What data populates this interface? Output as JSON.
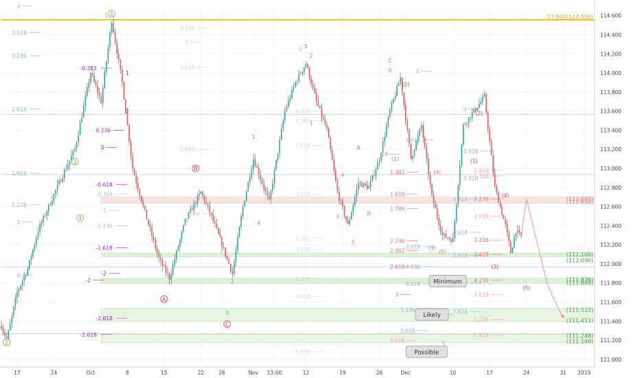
{
  "chart_data": {
    "type": "candlestick",
    "series_colors": {
      "up": "#26a69a",
      "down": "#ef5350",
      "wick": "#555555"
    },
    "ylim": [
      110.92,
      114.72
    ],
    "xlim": [
      0,
      113
    ],
    "y_ticks": [
      "114.600",
      "114.400",
      "114.200",
      "114.000",
      "113.800",
      "113.600",
      "113.400",
      "113.200",
      "113.000",
      "112.800",
      "112.600",
      "112.400",
      "112.200",
      "112.000",
      "111.800",
      "111.600",
      "111.400",
      "111.200",
      "111.000"
    ],
    "x_ticks": [
      {
        "label": "17",
        "x": 3
      },
      {
        "label": "24",
        "x": 10
      },
      {
        "label": "Oct",
        "x": 17
      },
      {
        "label": "8",
        "x": 24
      },
      {
        "label": "15",
        "x": 31
      },
      {
        "label": "22",
        "x": 38
      },
      {
        "label": "26",
        "x": 42
      },
      {
        "label": "Nov",
        "x": 48
      },
      {
        "label": "13:00",
        "x": 52
      },
      {
        "label": "12",
        "x": 58
      },
      {
        "label": "19",
        "x": 65
      },
      {
        "label": "26",
        "x": 72
      },
      {
        "label": "Dec",
        "x": 77
      },
      {
        "label": "10",
        "x": 86
      },
      {
        "label": "17",
        "x": 93
      },
      {
        "label": "24",
        "x": 100
      },
      {
        "label": "31",
        "x": 107
      },
      {
        "label": "2019",
        "x": 111
      }
    ],
    "anchors": [
      {
        "x": 0,
        "y": 111.35
      },
      {
        "x": 1,
        "y": 111.2
      },
      {
        "x": 3,
        "y": 111.7
      },
      {
        "x": 5,
        "y": 111.95
      },
      {
        "x": 7,
        "y": 112.35
      },
      {
        "x": 9,
        "y": 112.6
      },
      {
        "x": 11,
        "y": 112.85
      },
      {
        "x": 14,
        "y": 113.2
      },
      {
        "x": 17,
        "y": 114.0
      },
      {
        "x": 19,
        "y": 113.7
      },
      {
        "x": 21,
        "y": 114.55
      },
      {
        "x": 23,
        "y": 113.9
      },
      {
        "x": 25,
        "y": 113.0
      },
      {
        "x": 27,
        "y": 112.6
      },
      {
        "x": 30,
        "y": 112.05
      },
      {
        "x": 32,
        "y": 111.85
      },
      {
        "x": 35,
        "y": 112.45
      },
      {
        "x": 38,
        "y": 112.75
      },
      {
        "x": 40,
        "y": 112.5
      },
      {
        "x": 42,
        "y": 112.2
      },
      {
        "x": 44,
        "y": 111.9
      },
      {
        "x": 46,
        "y": 112.6
      },
      {
        "x": 48,
        "y": 113.1
      },
      {
        "x": 51,
        "y": 112.65
      },
      {
        "x": 54,
        "y": 113.6
      },
      {
        "x": 56,
        "y": 113.9
      },
      {
        "x": 58,
        "y": 114.1
      },
      {
        "x": 60,
        "y": 113.7
      },
      {
        "x": 62,
        "y": 113.4
      },
      {
        "x": 64,
        "y": 112.75
      },
      {
        "x": 66,
        "y": 112.4
      },
      {
        "x": 68,
        "y": 112.85
      },
      {
        "x": 70,
        "y": 112.8
      },
      {
        "x": 72,
        "y": 113.1
      },
      {
        "x": 74,
        "y": 113.6
      },
      {
        "x": 76,
        "y": 113.95
      },
      {
        "x": 78,
        "y": 113.1
      },
      {
        "x": 80,
        "y": 113.45
      },
      {
        "x": 82,
        "y": 112.7
      },
      {
        "x": 84,
        "y": 112.3
      },
      {
        "x": 86,
        "y": 112.25
      },
      {
        "x": 88,
        "y": 113.45
      },
      {
        "x": 90,
        "y": 113.6
      },
      {
        "x": 92,
        "y": 113.75
      },
      {
        "x": 94,
        "y": 112.8
      },
      {
        "x": 96,
        "y": 112.4
      },
      {
        "x": 97,
        "y": 112.12
      },
      {
        "x": 98,
        "y": 112.35
      },
      {
        "x": 99,
        "y": 112.28
      }
    ],
    "last_bar": 99,
    "forecast": [
      {
        "x": 99,
        "y": 112.28
      },
      {
        "x": 100,
        "y": 112.68
      },
      {
        "x": 104,
        "y": 111.78
      },
      {
        "x": 107,
        "y": 111.43
      }
    ],
    "horizontal_lines": [
      {
        "y": 114.556,
        "color": "#f5a623",
        "label": "17.942(114.556)"
      },
      {
        "y": 113.565,
        "color": "#b9c4cf"
      },
      {
        "y": 112.935,
        "color": "#b9c4cf"
      },
      {
        "y": 111.97,
        "color": "#b9c4cf"
      },
      {
        "y": 111.27,
        "color": "#b9c4cf"
      }
    ],
    "zones": [
      {
        "y1": 112.685,
        "y2": 112.65,
        "fill": "#fde2e2",
        "labels": [
          {
            "text": "(112.685)",
            "y": 112.685,
            "color": "#f08080"
          },
          {
            "text": "(112.650)",
            "y": 112.65,
            "color": "#f08080"
          }
        ]
      },
      {
        "y1": 112.1,
        "y2": 112.09,
        "fill": "#dff0d8",
        "labels": [
          {
            "text": "(112.100)",
            "y": 112.1,
            "color": "#43a047"
          },
          {
            "text": "(112.090)",
            "y": 112.04,
            "color": "#43a047"
          }
        ]
      },
      {
        "y1": 111.836,
        "y2": 111.809,
        "fill": "#dff0d8",
        "labels": [
          {
            "text": "(111.836)",
            "y": 111.836,
            "color": "#43a047"
          },
          {
            "text": "(111.809)",
            "y": 111.8,
            "color": "#43a047"
          }
        ]
      },
      {
        "y1": 111.522,
        "y2": 111.411,
        "fill": "#e8f5e3",
        "labels": [
          {
            "text": "(111.522)",
            "y": 111.522,
            "color": "#43a047"
          },
          {
            "text": "(111.411)",
            "y": 111.411,
            "color": "#43a047"
          }
        ]
      },
      {
        "y1": 111.248,
        "y2": 111.19,
        "fill": "#e8f5e3",
        "labels": [
          {
            "text": "(111.248)",
            "y": 111.248,
            "color": "#43a047"
          },
          {
            "text": "(111.190)",
            "y": 111.19,
            "color": "#43a047"
          }
        ]
      }
    ],
    "fib_labels": [
      {
        "text": "4",
        "x": 3,
        "y": 114.7,
        "color": "#9fbfd6"
      },
      {
        "text": "3.618",
        "x": 2,
        "y": 114.42,
        "color": "#8bb7d6"
      },
      {
        "text": "3.236",
        "x": 2,
        "y": 114.18,
        "color": "#8bb7d6"
      },
      {
        "text": "2.618",
        "x": 2,
        "y": 113.62,
        "color": "#8bb7d6"
      },
      {
        "text": "1.618",
        "x": 2,
        "y": 112.95,
        "color": "#8bb7d6"
      },
      {
        "text": "1.236",
        "x": 2,
        "y": 112.62,
        "color": "#8bb7d6"
      },
      {
        "text": "1",
        "x": 3,
        "y": 112.44,
        "color": "#8bb7d6"
      },
      {
        "text": "0",
        "x": 3,
        "y": 111.88,
        "color": "#8bb7d6"
      },
      {
        "text": "-0.382",
        "x": 15,
        "y": 114.05,
        "color": "#9c27b0"
      },
      {
        "text": "0.236",
        "x": 18,
        "y": 113.4,
        "color": "#9c27b0"
      },
      {
        "text": "0",
        "x": 19,
        "y": 113.22,
        "color": "#9c27b0"
      },
      {
        "text": "-0.618",
        "x": 18,
        "y": 112.83,
        "color": "#9c27b0"
      },
      {
        "text": "-0.764",
        "x": 18,
        "y": 112.73,
        "color": "#b7b7b7"
      },
      {
        "text": "-1",
        "x": 19,
        "y": 112.56,
        "color": "#b7b7b7"
      },
      {
        "text": "-1.236",
        "x": 18,
        "y": 112.4,
        "color": "#b7b7b7"
      },
      {
        "text": "-1.618",
        "x": 18,
        "y": 112.17,
        "color": "#9c27b0"
      },
      {
        "text": "-2",
        "x": 19,
        "y": 111.9,
        "color": "#9c27b0"
      },
      {
        "text": "-2",
        "x": 16,
        "y": 111.83,
        "color": "#9c27b0"
      },
      {
        "text": "-2.618",
        "x": 18,
        "y": 111.43,
        "color": "#9c27b0"
      },
      {
        "text": "-2.618",
        "x": 15,
        "y": 111.26,
        "color": "#9c27b0"
      },
      {
        "text": "6.236",
        "x": 34,
        "y": 114.47,
        "color": "#d8d3b8"
      },
      {
        "text": "5",
        "x": 35,
        "y": 114.32,
        "color": "#d8d3b8"
      },
      {
        "text": "3.618",
        "x": 34,
        "y": 114.06,
        "color": "#d8d3b8"
      },
      {
        "text": "2.618",
        "x": 34,
        "y": 113.2,
        "color": "#d8d3b8"
      },
      {
        "text": "1.618",
        "x": 35,
        "y": 112.52,
        "color": "#d8d3b8"
      },
      {
        "text": "4.236",
        "x": 56,
        "y": 113.6,
        "color": "#c7dbe9"
      },
      {
        "text": "1.382",
        "x": 56,
        "y": 113.5,
        "color": "#c7dbe9"
      },
      {
        "text": "1.618",
        "x": 56,
        "y": 113.24,
        "color": "#c7dbe9"
      },
      {
        "text": "2.618",
        "x": 56,
        "y": 112.73,
        "color": "#c7dbe9"
      },
      {
        "text": "3.382",
        "x": 56,
        "y": 112.27,
        "color": "#c7dbe9"
      },
      {
        "text": "3.618",
        "x": 56,
        "y": 112.15,
        "color": "#c7dbe9"
      },
      {
        "text": "4.236",
        "x": 56,
        "y": 111.84,
        "color": "#c7dbe9"
      },
      {
        "text": "4.618",
        "x": 56,
        "y": 111.66,
        "color": "#c7dbe9"
      },
      {
        "text": "5.618",
        "x": 56,
        "y": 111.08,
        "color": "#c7dbe9"
      },
      {
        "text": "0",
        "x": 73,
        "y": 113.15,
        "color": "#e57373"
      },
      {
        "text": "1.382",
        "x": 74,
        "y": 112.96,
        "color": "#e57373"
      },
      {
        "text": "1.618",
        "x": 74,
        "y": 112.73,
        "color": "#e57373"
      },
      {
        "text": "1.786",
        "x": 74,
        "y": 112.58,
        "color": "#e57373"
      },
      {
        "text": "2.236",
        "x": 74,
        "y": 112.24,
        "color": "#e57373"
      },
      {
        "text": "2.382",
        "x": 74,
        "y": 112.14,
        "color": "#e57373"
      },
      {
        "text": "2.618",
        "x": 74,
        "y": 111.97,
        "color": "#e57373"
      },
      {
        "text": "3",
        "x": 75,
        "y": 111.68,
        "color": "#e57373"
      },
      {
        "text": "3.618",
        "x": 74,
        "y": 111.2,
        "color": "#f4a9a8"
      },
      {
        "text": "3.618",
        "x": 77,
        "y": 112.18,
        "color": "#8bb7d6"
      },
      {
        "text": "4.236",
        "x": 77,
        "y": 111.97,
        "color": "#8bb7d6"
      },
      {
        "text": "4.618",
        "x": 77,
        "y": 111.79,
        "color": "#8bb7d6"
      },
      {
        "text": "5.236",
        "x": 76,
        "y": 111.52,
        "color": "#8bb7d6"
      },
      {
        "text": "5.618",
        "x": 76,
        "y": 111.3,
        "color": "#8bb7d6"
      },
      {
        "text": "0",
        "x": 79,
        "y": 114.02,
        "color": "#8bb7d6"
      },
      {
        "text": "1.618",
        "x": 77,
        "y": 113.3,
        "color": "#8bb7d6"
      },
      {
        "text": "0",
        "x": 88,
        "y": 113.62,
        "color": "#8bb7d6"
      },
      {
        "text": "1.618",
        "x": 88,
        "y": 113.18,
        "color": "#8bb7d6"
      },
      {
        "text": "2.618",
        "x": 88,
        "y": 112.9,
        "color": "#8bb7d6"
      },
      {
        "text": "3.618",
        "x": 86,
        "y": 112.68,
        "color": "#8bb7d6"
      },
      {
        "text": "4.618",
        "x": 86,
        "y": 112.33,
        "color": "#8bb7d6"
      },
      {
        "text": "5.618",
        "x": 86,
        "y": 112.09,
        "color": "#8bb7d6"
      },
      {
        "text": "6.618",
        "x": 86,
        "y": 111.8,
        "color": "#8bb7d6"
      },
      {
        "text": "7.618",
        "x": 86,
        "y": 111.5,
        "color": "#8bb7d6"
      },
      {
        "text": "1.618",
        "x": 90,
        "y": 112.98,
        "color": "#f4a9a8"
      },
      {
        "text": "1.764",
        "x": 90,
        "y": 112.92,
        "color": "#f4a9a8"
      },
      {
        "text": "2.236",
        "x": 90,
        "y": 112.68,
        "color": "#e57373"
      },
      {
        "text": "2.618",
        "x": 90,
        "y": 112.5,
        "color": "#f4a9a8"
      },
      {
        "text": "3.236",
        "x": 90,
        "y": 112.25,
        "color": "#e57373"
      },
      {
        "text": "3.618",
        "x": 90,
        "y": 112.1,
        "color": "#e57373"
      },
      {
        "text": "4.236",
        "x": 90,
        "y": 111.83,
        "color": "#e57373"
      },
      {
        "text": "4.618",
        "x": 90,
        "y": 111.68,
        "color": "#f4a9a8"
      },
      {
        "text": "5.236",
        "x": 90,
        "y": 111.42,
        "color": "#f4a9a8"
      },
      {
        "text": "5.618",
        "x": 90,
        "y": 111.25,
        "color": "#f4a9a8"
      }
    ],
    "wave_labels": [
      {
        "text": "5",
        "x": 21,
        "y": 114.62,
        "circle": true,
        "color": "#7cb342"
      },
      {
        "text": "3",
        "x": 14,
        "y": 113.07,
        "circle": true,
        "color": "#7cb342"
      },
      {
        "text": "4",
        "x": 15,
        "y": 112.48,
        "circle": true,
        "color": "#7cb342"
      },
      {
        "text": "2",
        "x": 1,
        "y": 111.18,
        "circle": true,
        "color": "#7cb342"
      },
      {
        "text": "1",
        "x": 20,
        "y": 114.6,
        "circle": false,
        "color": "#e57373"
      },
      {
        "text": "1",
        "x": 24,
        "y": 114.0,
        "circle": false,
        "color": "#9c27b0"
      },
      {
        "text": "2",
        "x": 24,
        "y": 113.6,
        "circle": false,
        "color": "#9c27b0"
      },
      {
        "text": "B",
        "x": 37,
        "y": 113.0,
        "circle": true,
        "color": "#e53935"
      },
      {
        "text": "A",
        "x": 31,
        "y": 111.63,
        "circle": true,
        "color": "#e53935"
      },
      {
        "text": "C",
        "x": 43,
        "y": 111.37,
        "circle": true,
        "color": "#e53935"
      },
      {
        "text": "3",
        "x": 48,
        "y": 113.33,
        "circle": false,
        "color": "#888888"
      },
      {
        "text": "4",
        "x": 49,
        "y": 112.43,
        "circle": false,
        "color": "#888888"
      },
      {
        "text": "5",
        "x": 58,
        "y": 114.28,
        "circle": false,
        "color": "#888888"
      },
      {
        "text": "0",
        "x": 57,
        "y": 114.25,
        "circle": false,
        "color": "#9fbfd6"
      },
      {
        "text": "2",
        "x": 44,
        "y": 111.82,
        "circle": false,
        "color": "#888888"
      },
      {
        "text": "0",
        "x": 43,
        "y": 111.49,
        "circle": false,
        "color": "#7cb342"
      },
      {
        "text": "2",
        "x": 59,
        "y": 114.18,
        "circle": false,
        "color": "#e57373"
      },
      {
        "text": "1",
        "x": 59,
        "y": 113.48,
        "circle": false,
        "color": "#888888"
      },
      {
        "text": "4",
        "x": 65,
        "y": 112.93,
        "circle": false,
        "color": "#e57373"
      },
      {
        "text": "3",
        "x": 64,
        "y": 112.5,
        "circle": false,
        "color": "#e57373"
      },
      {
        "text": "5",
        "x": 67,
        "y": 112.23,
        "circle": false,
        "color": "#e57373"
      },
      {
        "text": "A",
        "x": 68,
        "y": 113.22,
        "circle": false,
        "color": "#888888"
      },
      {
        "text": "B",
        "x": 70,
        "y": 112.53,
        "circle": false,
        "color": "#7cb342"
      },
      {
        "text": "C",
        "x": 74,
        "y": 114.13,
        "circle": false,
        "color": "#888888"
      },
      {
        "text": "0",
        "x": 74,
        "y": 114.03,
        "circle": false,
        "color": "#e57373"
      },
      {
        "text": "(2)",
        "x": 77,
        "y": 113.88,
        "circle": false,
        "color": "#e53935"
      },
      {
        "text": "(1)",
        "x": 75,
        "y": 113.1,
        "circle": false,
        "color": "#888888"
      },
      {
        "text": "(4)",
        "x": 83,
        "y": 112.96,
        "circle": false,
        "color": "#e57373"
      },
      {
        "text": "(3)",
        "x": 82,
        "y": 112.17,
        "circle": false,
        "color": "#e57373"
      },
      {
        "text": "(5)",
        "x": 84,
        "y": 112.13,
        "circle": false,
        "color": "#e57373"
      },
      {
        "text": "(2)",
        "x": 91,
        "y": 113.58,
        "circle": false,
        "color": "#e53935"
      },
      {
        "text": "(1)",
        "x": 90,
        "y": 113.08,
        "circle": false,
        "color": "#e53935"
      },
      {
        "text": "(4)",
        "x": 96,
        "y": 112.72,
        "circle": false,
        "color": "#e53935"
      },
      {
        "text": "(3)",
        "x": 94,
        "y": 111.97,
        "circle": false,
        "color": "#e53935"
      },
      {
        "text": "(5)",
        "x": 100,
        "y": 111.75,
        "circle": false,
        "color": "#e53935"
      }
    ],
    "callouts": [
      {
        "text": "Minimum",
        "x": 85,
        "y": 111.82,
        "to": {
          "x": 88,
          "y": 111.82
        }
      },
      {
        "text": "Likely",
        "x": 82,
        "y": 111.47,
        "to": {
          "x": 86,
          "y": 111.47
        }
      },
      {
        "text": "Possible",
        "x": 81,
        "y": 111.08,
        "to": {
          "x": 84,
          "y": 111.2
        }
      }
    ]
  }
}
